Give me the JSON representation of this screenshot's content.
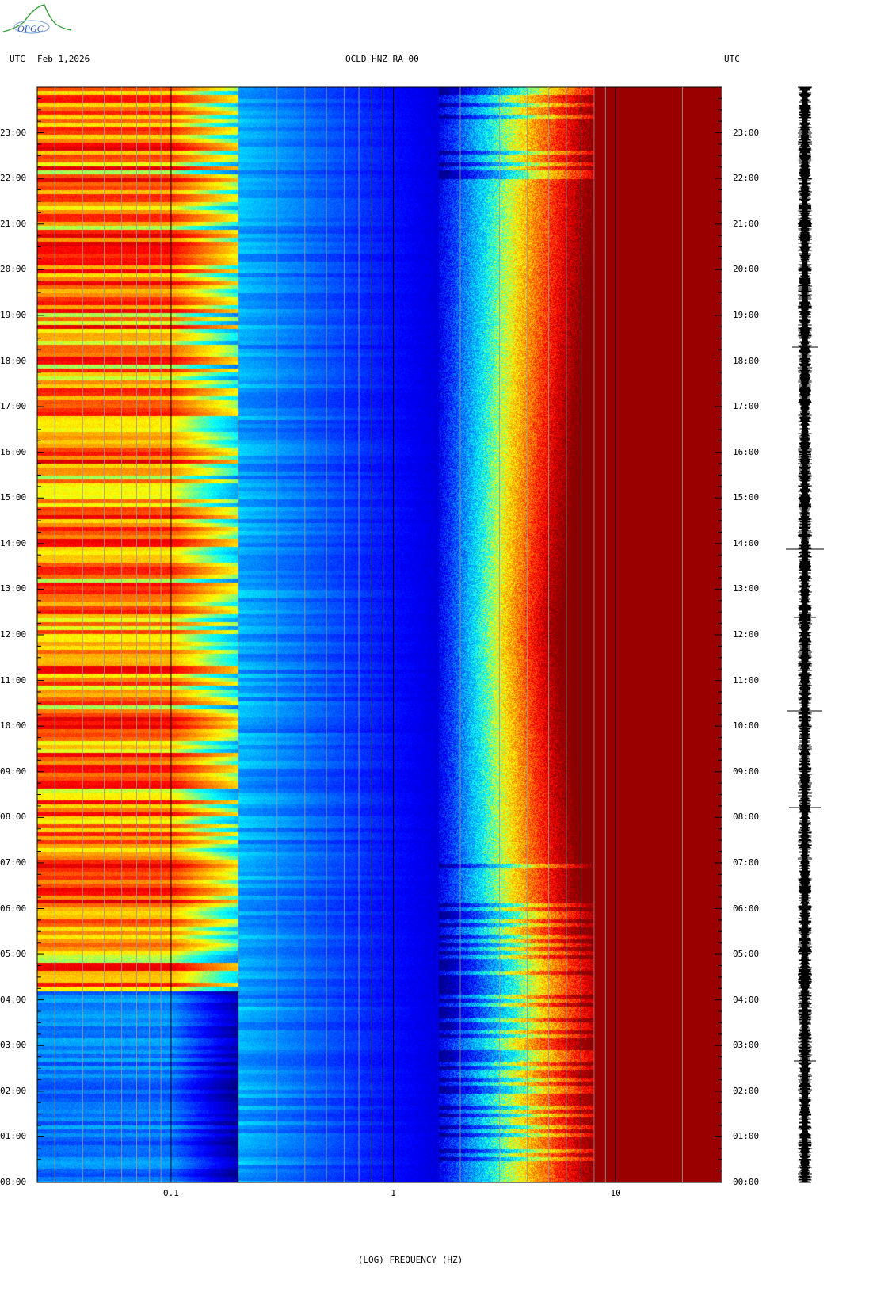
{
  "header": {
    "left_tz": "UTC",
    "date": "Feb 1,2026",
    "station": "OCLD HNZ RA 00",
    "right_tz": "UTC"
  },
  "logo": {
    "text": "OPGC"
  },
  "chart_data": {
    "type": "heatmap",
    "title": "OCLD HNZ RA 00",
    "xlabel": "(LOG) FREQUENCY (HZ)",
    "xscale": "log",
    "xlim": [
      0.025,
      30
    ],
    "x_ticks": [
      {
        "value": 0.1,
        "label": "0.1"
      },
      {
        "value": 1,
        "label": "1"
      },
      {
        "value": 10,
        "label": "10"
      }
    ],
    "ylabel": "UTC",
    "ylim_hours": [
      0,
      24
    ],
    "y_ticks": [
      "00:00",
      "01:00",
      "02:00",
      "03:00",
      "04:00",
      "05:00",
      "06:00",
      "07:00",
      "08:00",
      "09:00",
      "10:00",
      "11:00",
      "12:00",
      "13:00",
      "14:00",
      "15:00",
      "16:00",
      "17:00",
      "18:00",
      "19:00",
      "20:00",
      "21:00",
      "22:00",
      "23:00"
    ],
    "colormap": [
      "#00008c",
      "#0000ff",
      "#0080ff",
      "#00ffff",
      "#ffff00",
      "#ff8000",
      "#ff0000",
      "#8b0000"
    ],
    "grid": true
  },
  "seismogram": {
    "color": "#000000"
  }
}
